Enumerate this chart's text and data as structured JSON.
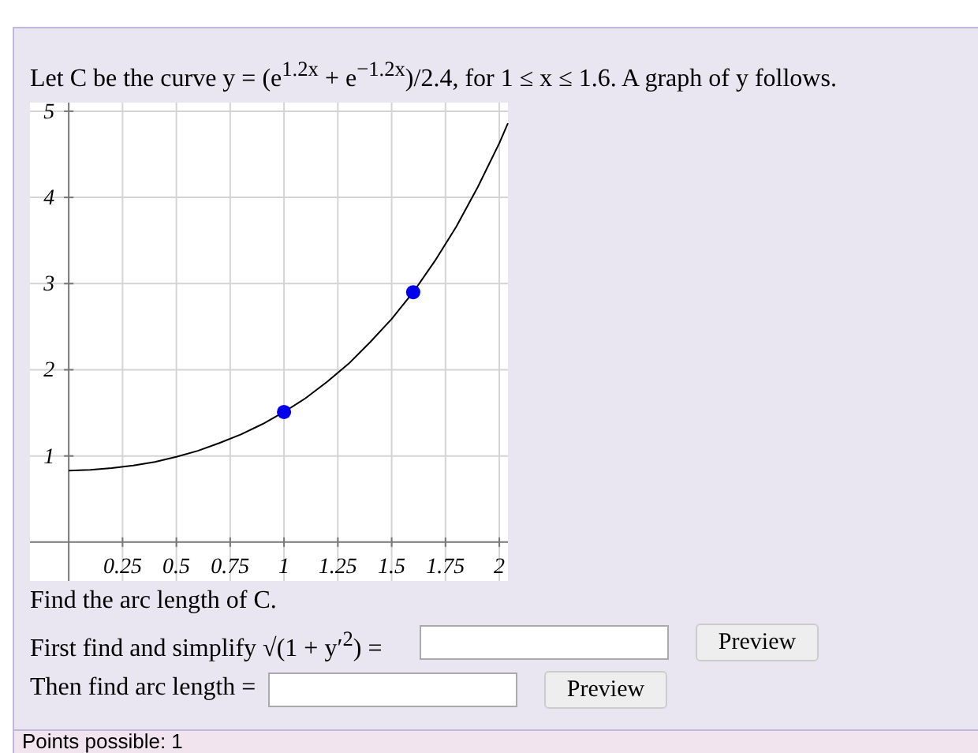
{
  "chart_data": {
    "type": "line",
    "title": "Let C be the curve y = (e$^{1.2x}$ + e$^{−1.2x}$)/2.4, for 1 ≤ x ≤ 1.6. A graph of y follows.",
    "xlim": [
      -0.18,
      2.04
    ],
    "ylim": [
      -0.45,
      5.1
    ],
    "xticks": [
      0.25,
      0.5,
      0.75,
      1,
      1.25,
      1.5,
      1.75,
      2
    ],
    "yticks": [
      1,
      2,
      3,
      4,
      5
    ],
    "grid": true,
    "series": [
      {
        "color": "#000000",
        "marker": "none",
        "line_style": "solid",
        "x": [
          0,
          0.1,
          0.2,
          0.3,
          0.4,
          0.5,
          0.6,
          0.7,
          0.8,
          0.9,
          1.0,
          1.1,
          1.2,
          1.3,
          1.4,
          1.5,
          1.6,
          1.7,
          1.8,
          1.9,
          2.0,
          2.04
        ],
        "values": [
          0.83,
          0.84,
          0.86,
          0.89,
          0.93,
          0.99,
          1.06,
          1.15,
          1.25,
          1.37,
          1.51,
          1.67,
          1.86,
          2.07,
          2.32,
          2.59,
          2.9,
          3.26,
          3.66,
          4.12,
          4.63,
          4.86
        ]
      },
      {
        "type": "scatter",
        "color": "#0000ee",
        "marker": "circle",
        "x": [
          1,
          1.6
        ],
        "values": [
          1.51,
          2.9
        ]
      }
    ],
    "annotations": [
      "Find the arc length of C.",
      "First find and simplify √(1 + y′$^{2}$) =",
      "Then find arc length =",
      "Preview",
      "Preview",
      "Points possible: 1"
    ]
  }
}
